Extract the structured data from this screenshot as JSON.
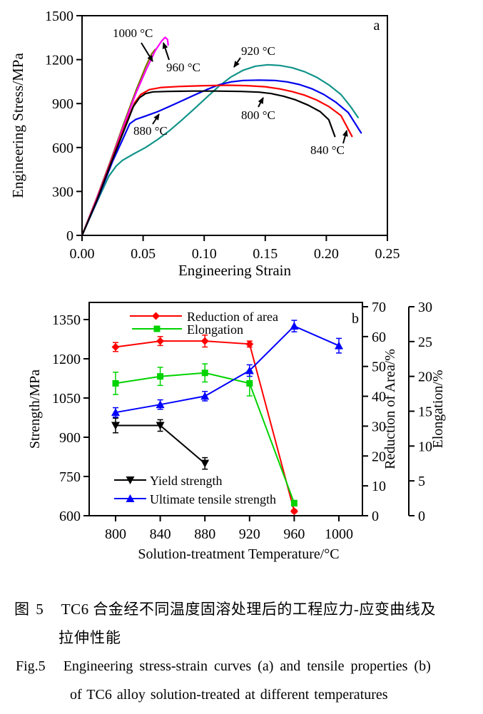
{
  "caption": {
    "zh_tag": "图 5",
    "zh_line1": "TC6 合金经不同温度固溶处理后的工程应力-应变曲线及",
    "zh_line2": "拉伸性能",
    "en_tag": "Fig.5",
    "en_line1": "Engineering stress-strain curves (a) and tensile properties (b)",
    "en_line2": "of TC6 alloy solution-treated at different temperatures"
  },
  "chart_data": [
    {
      "id": "stress-strain",
      "type": "line",
      "panel_label": "a",
      "xlabel": "Engineering Strain",
      "ylabel": "Engineering Stress/MPa",
      "xlim": [
        0,
        0.25
      ],
      "ylim": [
        0,
        1500
      ],
      "xticks": [
        0,
        0.05,
        0.1,
        0.15,
        0.2,
        0.25
      ],
      "xtick_labels": [
        "0.00",
        "0.05",
        "0.10",
        "0.15",
        "0.20",
        "0.25"
      ],
      "yticks": [
        0,
        300,
        600,
        900,
        1200,
        1500
      ],
      "grid": false,
      "series": [
        {
          "name": "1000 °C",
          "color": "#7f7500",
          "points": [
            [
              0,
              0
            ],
            [
              0.012,
              255
            ],
            [
              0.024,
              525
            ],
            [
              0.034,
              760
            ],
            [
              0.044,
              985
            ],
            [
              0.052,
              1150
            ],
            [
              0.057,
              1240
            ],
            [
              0.06,
              1270
            ]
          ]
        },
        {
          "name": "960 °C",
          "color": "#ff00ff",
          "points": [
            [
              0,
              0
            ],
            [
              0.012,
              250
            ],
            [
              0.024,
              515
            ],
            [
              0.034,
              745
            ],
            [
              0.044,
              968
            ],
            [
              0.053,
              1140
            ],
            [
              0.06,
              1262
            ],
            [
              0.065,
              1325
            ],
            [
              0.068,
              1352
            ],
            [
              0.07,
              1338
            ],
            [
              0.0705,
              1300
            ]
          ]
        },
        {
          "name": "920 °C",
          "color": "#12948a",
          "points": [
            [
              0,
              0
            ],
            [
              0.012,
              225
            ],
            [
              0.022,
              405
            ],
            [
              0.028,
              474
            ],
            [
              0.033,
              512
            ],
            [
              0.042,
              555
            ],
            [
              0.052,
              600
            ],
            [
              0.062,
              655
            ],
            [
              0.072,
              718
            ],
            [
              0.082,
              790
            ],
            [
              0.092,
              865
            ],
            [
              0.102,
              942
            ],
            [
              0.112,
              1018
            ],
            [
              0.122,
              1082
            ],
            [
              0.132,
              1128
            ],
            [
              0.142,
              1155
            ],
            [
              0.152,
              1165
            ],
            [
              0.162,
              1160
            ],
            [
              0.172,
              1145
            ],
            [
              0.182,
              1118
            ],
            [
              0.192,
              1080
            ],
            [
              0.202,
              1028
            ],
            [
              0.212,
              962
            ],
            [
              0.22,
              878
            ],
            [
              0.226,
              805
            ]
          ]
        },
        {
          "name": "880 °C",
          "color": "#0000ee",
          "points": [
            [
              0,
              0
            ],
            [
              0.012,
              230
            ],
            [
              0.025,
              505
            ],
            [
              0.033,
              650
            ],
            [
              0.039,
              762
            ],
            [
              0.044,
              792
            ],
            [
              0.052,
              815
            ],
            [
              0.062,
              845
            ],
            [
              0.072,
              882
            ],
            [
              0.082,
              920
            ],
            [
              0.092,
              958
            ],
            [
              0.102,
              995
            ],
            [
              0.112,
              1028
            ],
            [
              0.122,
              1048
            ],
            [
              0.132,
              1058
            ],
            [
              0.145,
              1060
            ],
            [
              0.158,
              1058
            ],
            [
              0.168,
              1048
            ],
            [
              0.178,
              1030
            ],
            [
              0.188,
              1002
            ],
            [
              0.198,
              962
            ],
            [
              0.208,
              908
            ],
            [
              0.218,
              838
            ],
            [
              0.2285,
              700
            ]
          ]
        },
        {
          "name": "840 °C",
          "color": "#ff0000",
          "points": [
            [
              0,
              0
            ],
            [
              0.012,
              240
            ],
            [
              0.025,
              530
            ],
            [
              0.035,
              745
            ],
            [
              0.043,
              905
            ],
            [
              0.048,
              962
            ],
            [
              0.055,
              995
            ],
            [
              0.065,
              1010
            ],
            [
              0.08,
              1017
            ],
            [
              0.1,
              1022
            ],
            [
              0.12,
              1025
            ],
            [
              0.135,
              1022
            ],
            [
              0.15,
              1015
            ],
            [
              0.162,
              1000
            ],
            [
              0.172,
              982
            ],
            [
              0.182,
              958
            ],
            [
              0.192,
              925
            ],
            [
              0.202,
              880
            ],
            [
              0.212,
              818
            ],
            [
              0.221,
              676
            ]
          ]
        },
        {
          "name": "800 °C",
          "color": "#000000",
          "points": [
            [
              0,
              0
            ],
            [
              0.012,
              235
            ],
            [
              0.025,
              520
            ],
            [
              0.035,
              730
            ],
            [
              0.042,
              880
            ],
            [
              0.047,
              940
            ],
            [
              0.052,
              968
            ],
            [
              0.058,
              980
            ],
            [
              0.07,
              983
            ],
            [
              0.09,
              985
            ],
            [
              0.11,
              985
            ],
            [
              0.13,
              983
            ],
            [
              0.145,
              978
            ],
            [
              0.155,
              968
            ],
            [
              0.165,
              950
            ],
            [
              0.175,
              925
            ],
            [
              0.185,
              890
            ],
            [
              0.195,
              845
            ],
            [
              0.202,
              790
            ],
            [
              0.207,
              676
            ]
          ]
        }
      ],
      "annotations": [
        {
          "text": "1000 °C",
          "tx": 158,
          "ty": 52,
          "ax1": 198,
          "ay1": 60,
          "ax2": 214,
          "ay2": 86
        },
        {
          "text": "960 °C",
          "tx": 233,
          "ty": 100,
          "ax1": 237,
          "ay1": 84,
          "ax2": 229,
          "ay2": 60
        },
        {
          "text": "920 °C",
          "tx": 338,
          "ty": 77,
          "ax1": 337,
          "ay1": 81,
          "ax2": 328,
          "ay2": 94
        },
        {
          "text": "800 °C",
          "tx": 338,
          "ty": 167,
          "ax1": 362,
          "ay1": 150,
          "ax2": 369,
          "ay2": 137
        },
        {
          "text": "880 °C",
          "tx": 187,
          "ty": 189,
          "ax1": 214,
          "ay1": 174,
          "ax2": 223,
          "ay2": 160
        },
        {
          "text": "840 °C",
          "tx": 435,
          "ty": 216,
          "ax1": 481,
          "ay1": 201,
          "ax2": 486,
          "ay2": 183
        }
      ]
    },
    {
      "id": "tensile-properties",
      "type": "line",
      "panel_label": "b",
      "xlabel": "Solution-treatment Temperature/°C",
      "ylabel_left": "Strength/MPa",
      "ylabel_right1": "Reduction of Area/%",
      "ylabel_right2": "Elongation/%",
      "xticks": [
        800,
        840,
        880,
        920,
        960,
        1000
      ],
      "ylim_left": [
        600,
        1350
      ],
      "yticks_left": [
        600,
        750,
        900,
        1050,
        1200,
        1350
      ],
      "ylim_right1": [
        0,
        70
      ],
      "yticks_right1": [
        0,
        10,
        20,
        30,
        40,
        50,
        60,
        70
      ],
      "ylim_right2": [
        0,
        30
      ],
      "yticks_right2": [
        0,
        5,
        10,
        15,
        20,
        25,
        30
      ],
      "grid": false,
      "series": [
        {
          "name": "Reduction of area",
          "axis": "right1",
          "color": "#ff0000",
          "marker": "diamond",
          "x": [
            800,
            840,
            880,
            920,
            960
          ],
          "y": [
            56.5,
            58.5,
            58.5,
            57.5,
            1.5
          ],
          "yerr": [
            1.5,
            1.5,
            2,
            1,
            0.5
          ]
        },
        {
          "name": "Elongation",
          "axis": "right2",
          "color": "#00d300",
          "marker": "square",
          "x": [
            800,
            840,
            880,
            920,
            960
          ],
          "y": [
            19,
            20,
            20.5,
            19,
            1.8
          ],
          "yerr": [
            1.6,
            1.3,
            1.3,
            1.8,
            0.4
          ]
        },
        {
          "name": "Yield strength",
          "axis": "left",
          "color": "#000000",
          "marker": "triangle-down",
          "x": [
            800,
            840,
            880
          ],
          "y": [
            945,
            945,
            800
          ],
          "yerr": [
            28,
            22,
            22
          ]
        },
        {
          "name": "Ultimate tensile strength",
          "axis": "left",
          "color": "#0000ff",
          "marker": "triangle-up",
          "x": [
            800,
            840,
            880,
            920,
            960,
            1000
          ],
          "y": [
            995,
            1025,
            1057,
            1155,
            1325,
            1250
          ],
          "yerr": [
            18,
            18,
            18,
            22,
            22,
            28
          ]
        }
      ],
      "legend_top": [
        "Reduction of area",
        "Elongation"
      ],
      "legend_bottom": [
        "Yield strength",
        "Ultimate tensile strength"
      ]
    }
  ]
}
